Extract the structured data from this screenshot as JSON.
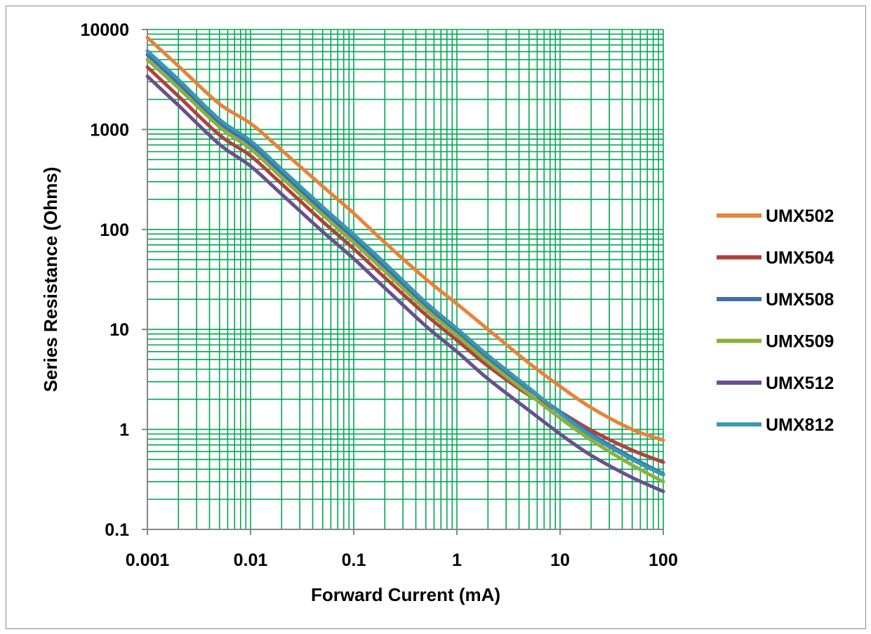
{
  "chart_data": {
    "type": "line",
    "title": "",
    "xlabel": "Forward Current (mA)",
    "ylabel": "Series Resistance (Ohms)",
    "x_scale": "log",
    "y_scale": "log",
    "xlim": [
      0.001,
      100
    ],
    "ylim": [
      0.1,
      10000
    ],
    "grid": true,
    "grid_color": "#00a651",
    "legend_position": "right",
    "x_tick_labels": [
      "0.001",
      "0.01",
      "0.1",
      "1",
      "10",
      "100"
    ],
    "y_tick_labels": [
      "0.1",
      "1",
      "10",
      "100",
      "1000",
      "10000"
    ],
    "x": [
      0.001,
      0.002,
      0.005,
      0.01,
      0.02,
      0.05,
      0.1,
      0.2,
      0.5,
      1,
      2,
      5,
      10,
      20,
      50,
      100
    ],
    "series": [
      {
        "name": "UMX502",
        "color": "#e8823a",
        "values": [
          8300,
          4300,
          1800,
          1150,
          620,
          270,
          145,
          74,
          32,
          18,
          10,
          4.6,
          2.7,
          1.65,
          1.0,
          0.78
        ]
      },
      {
        "name": "UMX504",
        "color": "#b0413e",
        "values": [
          4200,
          2150,
          880,
          545,
          285,
          120,
          64,
          33,
          14,
          7.8,
          4.3,
          2.2,
          1.5,
          0.98,
          0.62,
          0.47
        ]
      },
      {
        "name": "UMX508",
        "color": "#3f6fb0",
        "values": [
          5600,
          2900,
          1170,
          710,
          370,
          155,
          82,
          42,
          17.5,
          9.6,
          5.2,
          2.5,
          1.5,
          0.9,
          0.52,
          0.36
        ]
      },
      {
        "name": "UMX509",
        "color": "#8cb03e",
        "values": [
          5000,
          2600,
          1060,
          640,
          330,
          140,
          74,
          38,
          15.8,
          8.7,
          4.7,
          2.25,
          1.3,
          0.78,
          0.44,
          0.3
        ]
      },
      {
        "name": "UMX512",
        "color": "#6b4f8c",
        "values": [
          3400,
          1740,
          710,
          430,
          225,
          95,
          51,
          26,
          10.8,
          6.0,
          3.2,
          1.55,
          0.9,
          0.55,
          0.33,
          0.24
        ]
      },
      {
        "name": "UMX812",
        "color": "#3b98ae",
        "values": [
          6100,
          3150,
          1260,
          770,
          400,
          168,
          89,
          46,
          18.6,
          10.2,
          5.5,
          2.6,
          1.45,
          0.86,
          0.5,
          0.35
        ]
      }
    ]
  }
}
